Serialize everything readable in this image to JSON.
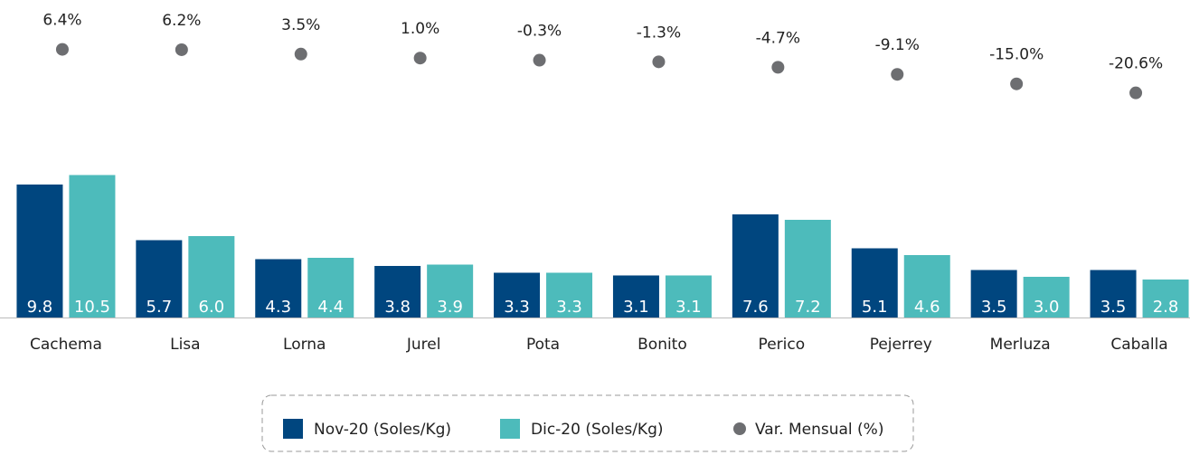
{
  "chart_data": {
    "type": "bar",
    "categories": [
      "Cachema",
      "Lisa",
      "Lorna",
      "Jurel",
      "Pota",
      "Bonito",
      "Perico",
      "Pejerrey",
      "Merluza",
      "Caballa"
    ],
    "series": [
      {
        "name": "Nov-20 (Soles/Kg)",
        "color": "#00467f",
        "values": [
          9.8,
          5.7,
          4.3,
          3.8,
          3.3,
          3.1,
          7.6,
          5.1,
          3.5,
          3.5
        ],
        "value_labels": [
          "9.8",
          "5.7",
          "4.3",
          "3.8",
          "3.3",
          "3.1",
          "7.6",
          "5.1",
          "3.5",
          "3.5"
        ]
      },
      {
        "name": "Dic-20 (Soles/Kg)",
        "color": "#4dbbbb",
        "values": [
          10.5,
          6.0,
          4.4,
          3.9,
          3.3,
          3.1,
          7.2,
          4.6,
          3.0,
          2.8
        ],
        "value_labels": [
          "10.5",
          "6.0",
          "4.4",
          "3.9",
          "3.3",
          "3.1",
          "7.2",
          "4.6",
          "3.0",
          "2.8"
        ]
      },
      {
        "name": "Var. Mensual (%)",
        "color": "#6d6e71",
        "axis": "y2",
        "values": [
          6.4,
          6.2,
          3.5,
          1.0,
          -0.3,
          -1.3,
          -4.7,
          -9.1,
          -15.0,
          -20.6
        ],
        "value_labels": [
          "6.4%",
          "6.2%",
          "3.5%",
          "1.0%",
          "-0.3%",
          "-1.3%",
          "-4.7%",
          "-9.1%",
          "-15.0%",
          "-20.6%"
        ]
      }
    ],
    "legend": "bottom"
  }
}
